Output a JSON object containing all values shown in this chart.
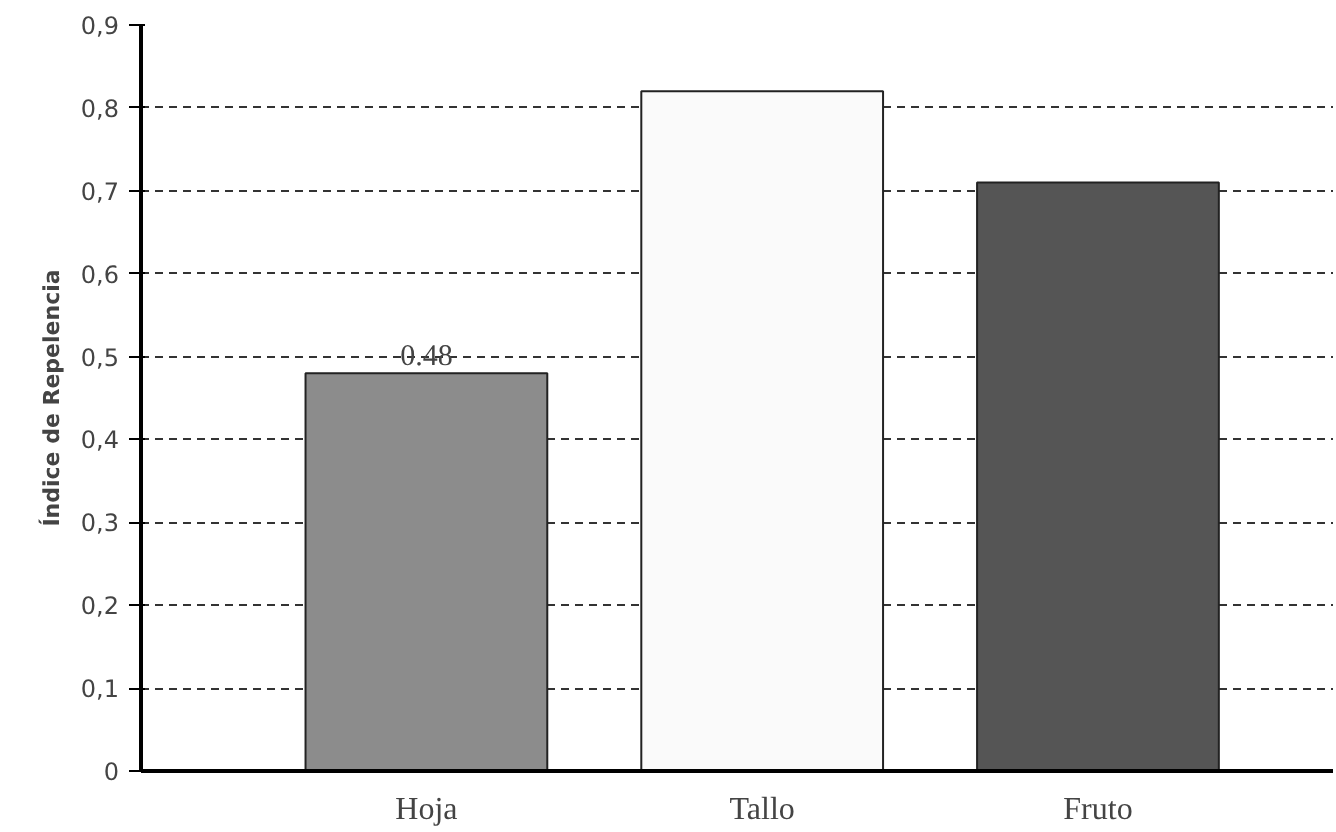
{
  "chart_data": {
    "type": "bar",
    "ylabel": "Índice de Repelencia",
    "categories": [
      "Hoja",
      "Tallo",
      "Fruto"
    ],
    "values": [
      0.48,
      0.82,
      0.71
    ],
    "colors": [
      "#8c8c8c",
      "#fafafa",
      "#555555"
    ],
    "value_labels": [
      "0.48",
      null,
      null
    ],
    "ylim": [
      0,
      0.9
    ],
    "yticks": [
      0,
      {
        "value": 0.1,
        "label": "0,1"
      },
      {
        "value": 0.2,
        "label": "0,2"
      },
      {
        "value": 0.3,
        "label": "0,3"
      },
      {
        "value": 0.4,
        "label": "0,4"
      },
      {
        "value": 0.5,
        "label": "0,5"
      },
      {
        "value": 0.6,
        "label": "0,6"
      },
      {
        "value": 0.7,
        "label": "0,7"
      },
      {
        "value": 0.8,
        "label": "0,8"
      },
      {
        "value": 0.9,
        "label": "0,9"
      }
    ],
    "grid": "y"
  }
}
